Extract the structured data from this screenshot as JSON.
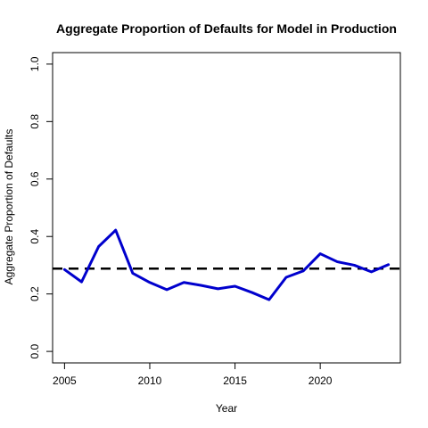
{
  "chart_data": {
    "type": "line",
    "title": "Aggregate Proportion of Defaults for Model in Production",
    "xlabel": "Year",
    "ylabel": "Aggregate Proportion of Defaults",
    "xlim": [
      2004.3,
      2024.7
    ],
    "ylim": [
      -0.04,
      1.04
    ],
    "x_ticks": [
      2005,
      2010,
      2015,
      2020
    ],
    "y_ticks": [
      0.0,
      0.2,
      0.4,
      0.6,
      0.8,
      1.0
    ],
    "x_tick_labels": [
      "2005",
      "2010",
      "2015",
      "2020"
    ],
    "y_tick_labels": [
      "0.0",
      "0.2",
      "0.4",
      "0.6",
      "0.8",
      "1.0"
    ],
    "grid": false,
    "series": [
      {
        "color": "#0000cd",
        "line_style": "solid",
        "x": [
          2005,
          2006,
          2007,
          2008,
          2009,
          2010,
          2011,
          2012,
          2013,
          2014,
          2015,
          2016,
          2017,
          2018,
          2019,
          2020,
          2021,
          2022,
          2023,
          2024
        ],
        "y": [
          0.285,
          0.242,
          0.365,
          0.422,
          0.272,
          0.24,
          0.215,
          0.24,
          0.23,
          0.218,
          0.227,
          0.205,
          0.18,
          0.258,
          0.28,
          0.34,
          0.312,
          0.3,
          0.277,
          0.302
        ]
      }
    ],
    "reference_lines": [
      {
        "orientation": "horizontal",
        "y": 0.288,
        "color": "#000000",
        "line_style": "dashed"
      }
    ]
  }
}
